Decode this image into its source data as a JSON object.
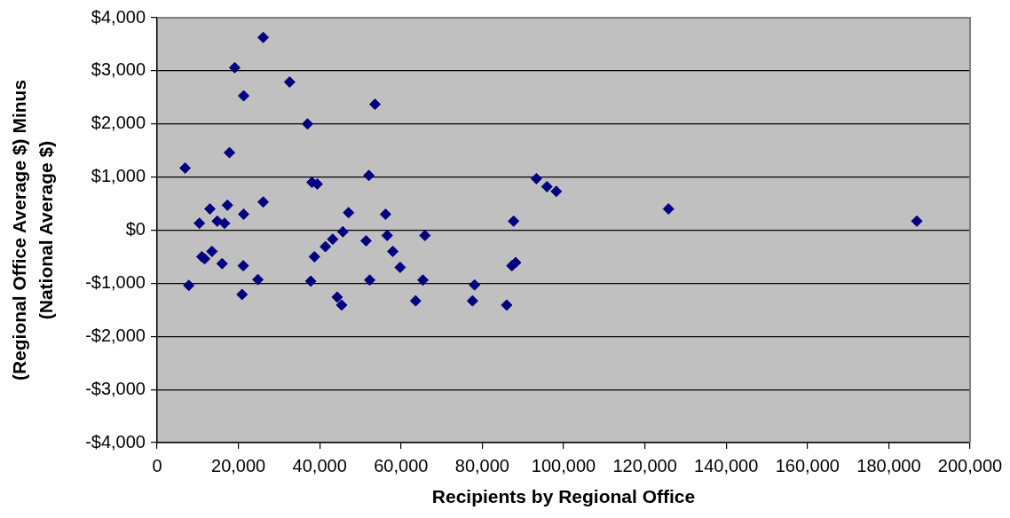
{
  "chart_data": {
    "type": "scatter",
    "xlabel": "Recipients by Regional Office",
    "ylabel": "(Regional Office Average $) Minus\n(National Average $)",
    "x": [
      6900,
      7800,
      10400,
      11000,
      11700,
      13000,
      13500,
      14800,
      16000,
      16600,
      17300,
      17800,
      19100,
      20900,
      21200,
      21300,
      21300,
      24800,
      26100,
      26100,
      32600,
      37000,
      37800,
      38100,
      38700,
      39400,
      41400,
      43200,
      44300,
      45400,
      45700,
      47100,
      51400,
      52100,
      52300,
      53600,
      56200,
      56600,
      58000,
      59800,
      63600,
      65400,
      65900,
      77600,
      78100,
      86000,
      87300,
      87700,
      88200,
      93300,
      95900,
      98200,
      125800,
      186900
    ],
    "values": [
      1170,
      -1040,
      130,
      -500,
      -540,
      400,
      -400,
      170,
      -630,
      130,
      470,
      1460,
      3060,
      -1210,
      -670,
      2530,
      300,
      -930,
      3630,
      530,
      2790,
      2000,
      -960,
      900,
      -500,
      870,
      -310,
      -170,
      -1260,
      -1410,
      -30,
      330,
      -200,
      1030,
      -940,
      2370,
      300,
      -100,
      -400,
      -700,
      -1330,
      -940,
      -100,
      -1330,
      -1030,
      -1410,
      -670,
      170,
      -610,
      970,
      820,
      730,
      400,
      170
    ],
    "color": "#000080",
    "marker": "diamond",
    "grid": "y",
    "xlim": [
      0,
      200000
    ],
    "xticks": [
      0,
      {
        "value": 20000,
        "label": "20,000"
      },
      {
        "value": 40000,
        "label": "40,000"
      },
      {
        "value": 60000,
        "label": "60,000"
      },
      {
        "value": 80000,
        "label": "80,000"
      },
      {
        "value": 100000,
        "label": "100,000"
      },
      {
        "value": 120000,
        "label": "120,000"
      },
      {
        "value": 140000,
        "label": "140,000"
      },
      {
        "value": 160000,
        "label": "160,000"
      },
      {
        "value": 180000,
        "label": "180,000"
      },
      {
        "value": 200000,
        "label": "200,000"
      }
    ],
    "ylim": [
      -4000,
      4000
    ],
    "yticks": [
      {
        "value": -4000,
        "label": "-$4,000"
      },
      {
        "value": -3000,
        "label": "-$3,000"
      },
      {
        "value": -2000,
        "label": "-$2,000"
      },
      {
        "value": -1000,
        "label": "-$1,000"
      },
      {
        "value": 0,
        "label": "$0"
      },
      {
        "value": 1000,
        "label": "$1,000"
      },
      {
        "value": 2000,
        "label": "$2,000"
      },
      {
        "value": 3000,
        "label": "$3,000"
      },
      {
        "value": 4000,
        "label": "$4,000"
      }
    ]
  }
}
